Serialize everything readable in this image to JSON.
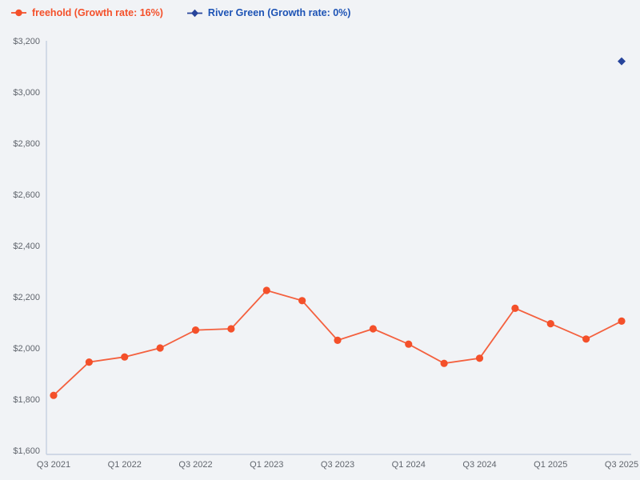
{
  "colors": {
    "background": "#f1f3f6",
    "axis_line": "#c5cfe0",
    "tick_label": "#60656d",
    "freehold_orange": "#f4502a",
    "river_green_blue_marker": "#27449b",
    "river_green_blue_text": "#1d53b5"
  },
  "legend": {
    "items": [
      {
        "id": "freehold",
        "label": "freehold (Growth rate: 16%)",
        "marker": "circle",
        "marker_color": "#f4502a",
        "text_color": "#f4502a"
      },
      {
        "id": "river-green",
        "label": "River Green (Growth rate: 0%)",
        "marker": "diamond",
        "marker_color": "#27449b",
        "text_color": "#1d53b5"
      }
    ]
  },
  "chart_data": {
    "type": "line",
    "title": "",
    "xlabel": "",
    "ylabel": "",
    "grid": false,
    "legend_position": "top-left",
    "ylim": [
      1600,
      3200
    ],
    "x": [
      "Q3 2021",
      "Q4 2021",
      "Q1 2022",
      "Q2 2022",
      "Q3 2022",
      "Q4 2022",
      "Q1 2023",
      "Q2 2023",
      "Q3 2023",
      "Q4 2023",
      "Q1 2024",
      "Q2 2024",
      "Q3 2024",
      "Q4 2024",
      "Q1 2025",
      "Q2 2025",
      "Q3 2025"
    ],
    "x_tick_indices": [
      0,
      2,
      4,
      6,
      8,
      10,
      12,
      14,
      16
    ],
    "x_tick_labels": [
      "Q3 2021",
      "Q1 2022",
      "Q3 2022",
      "Q1 2023",
      "Q3 2023",
      "Q1 2024",
      "Q3 2024",
      "Q1 2025",
      "Q3 2025"
    ],
    "y_ticks": [
      1600,
      1800,
      2000,
      2200,
      2400,
      2600,
      2800,
      3000,
      3200
    ],
    "y_tick_labels": [
      "$1,600",
      "$1,800",
      "$2,000",
      "$2,200",
      "$2,400",
      "$2,600",
      "$2,800",
      "$3,000",
      "$3,200"
    ],
    "series": [
      {
        "id": "freehold",
        "name": "freehold (Growth rate: 16%)",
        "growth_rate": "16%",
        "color": "#f4502a",
        "marker": "circle",
        "values": [
          1815,
          1945,
          1965,
          2000,
          2070,
          2075,
          2225,
          2185,
          2030,
          2075,
          2015,
          1940,
          1960,
          2155,
          2095,
          2035,
          2105
        ]
      },
      {
        "id": "river-green",
        "name": "River Green (Growth rate: 0%)",
        "growth_rate": "0%",
        "color": "#27449b",
        "marker": "diamond",
        "values": [
          null,
          null,
          null,
          null,
          null,
          null,
          null,
          null,
          null,
          null,
          null,
          null,
          null,
          null,
          null,
          null,
          3120
        ]
      }
    ]
  }
}
